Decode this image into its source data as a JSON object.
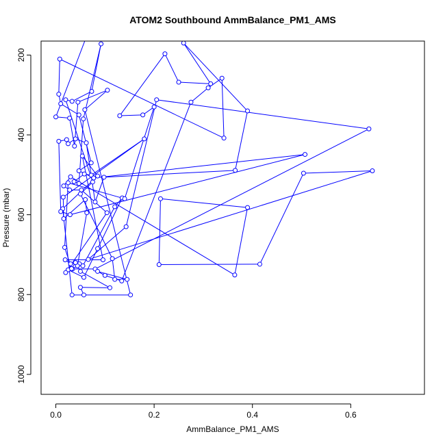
{
  "chart_data": {
    "type": "scatter",
    "title": "ATOM2 Southbound AmmBalance_PM1_AMS",
    "xlabel": "AmmBalance_PM1_AMS",
    "ylabel": "Pressure (mbar)",
    "xlim": [
      -0.03,
      0.75
    ],
    "ylim": [
      1050,
      165
    ],
    "y_reversed": true,
    "x_ticks": [
      0.0,
      0.2,
      0.4,
      0.6
    ],
    "x_tick_labels": [
      "0.0",
      "0.2",
      "0.4",
      "0.6"
    ],
    "y_ticks": [
      200,
      400,
      600,
      800,
      1000
    ],
    "y_tick_labels": [
      "200",
      "400",
      "600",
      "800",
      "1000"
    ],
    "grid": false,
    "legend": "none",
    "colors": {
      "series": "#0000ff",
      "axis": "#000000"
    },
    "series": [
      {
        "style": "points-connected",
        "points": [
          [
            0.12,
            150
          ],
          [
            0.061,
            158
          ],
          [
            0.0,
            355
          ],
          [
            0.028,
            358
          ],
          [
            0.038,
            428
          ],
          [
            0.045,
            318
          ],
          [
            0.105,
            288
          ],
          [
            0.059,
            337
          ],
          [
            0.152,
            801
          ],
          [
            0.033,
            801
          ],
          [
            0.014,
            585
          ],
          [
            0.085,
            503
          ],
          [
            0.054,
            453
          ],
          [
            0.096,
            713
          ],
          [
            0.019,
            713
          ],
          [
            0.03,
            723
          ],
          [
            0.048,
            723
          ],
          [
            0.055,
            728
          ],
          [
            0.12,
            580
          ],
          [
            0.135,
            558
          ],
          [
            0.085,
            685
          ],
          [
            0.057,
            757
          ],
          [
            0.025,
            738
          ],
          [
            0.02,
            745
          ],
          [
            0.104,
            595
          ],
          [
            0.052,
            538
          ],
          [
            0.028,
            538
          ],
          [
            0.016,
            528
          ],
          [
            0.03,
            505
          ],
          [
            0.364,
            751
          ],
          [
            0.39,
            582
          ],
          [
            0.213,
            560
          ],
          [
            0.21,
            725
          ],
          [
            0.415,
            724
          ],
          [
            0.504,
            496
          ],
          [
            0.644,
            490
          ],
          [
            0.066,
            712
          ],
          [
            0.143,
            630
          ],
          [
            0.205,
            312
          ],
          [
            0.637,
            385
          ],
          [
            0.08,
            736
          ],
          [
            0.034,
            736
          ],
          [
            0.044,
            728
          ],
          [
            0.063,
            595
          ],
          [
            0.06,
            562
          ],
          [
            0.016,
            610
          ],
          [
            0.015,
            556
          ],
          [
            0.18,
            410
          ],
          [
            0.072,
            501
          ],
          [
            0.058,
            498
          ],
          [
            0.037,
            517
          ],
          [
            0.047,
            522
          ],
          [
            0.056,
            360
          ],
          [
            0.092,
            172
          ],
          [
            0.073,
            291
          ],
          [
            0.033,
            316
          ],
          [
            0.02,
            312
          ],
          [
            0.075,
            518
          ],
          [
            0.05,
            548
          ],
          [
            0.115,
            710
          ],
          [
            0.12,
            762
          ],
          [
            0.145,
            762
          ],
          [
            0.085,
            742
          ],
          [
            0.1,
            752
          ],
          [
            0.134,
            766
          ],
          [
            0.275,
            318
          ],
          [
            0.31,
            282
          ],
          [
            0.338,
            258
          ],
          [
            0.342,
            408
          ],
          [
            0.008,
            210
          ],
          [
            0.006,
            298
          ],
          [
            0.01,
            322
          ],
          [
            0.047,
            350
          ],
          [
            0.072,
            470
          ],
          [
            0.047,
            490
          ],
          [
            0.077,
            508
          ],
          [
            0.507,
            449
          ],
          [
            0.029,
            600
          ],
          [
            0.01,
            592
          ],
          [
            0.006,
            416
          ],
          [
            0.022,
            412
          ],
          [
            0.025,
            422
          ],
          [
            0.04,
            410
          ],
          [
            0.062,
            420
          ],
          [
            0.08,
            568
          ],
          [
            0.098,
            506
          ],
          [
            0.365,
            489
          ],
          [
            0.39,
            340
          ],
          [
            0.26,
            170
          ],
          [
            0.315,
            272
          ],
          [
            0.25,
            268
          ],
          [
            0.222,
            197
          ],
          [
            0.13,
            352
          ],
          [
            0.177,
            350
          ],
          [
            0.2,
            330
          ],
          [
            0.14,
            560
          ],
          [
            0.025,
            520
          ],
          [
            0.018,
            682
          ],
          [
            0.032,
            735
          ],
          [
            0.04,
            720
          ],
          [
            0.05,
            742
          ],
          [
            0.11,
            783
          ],
          [
            0.05,
            782
          ],
          [
            0.057,
            801
          ]
        ]
      }
    ]
  }
}
